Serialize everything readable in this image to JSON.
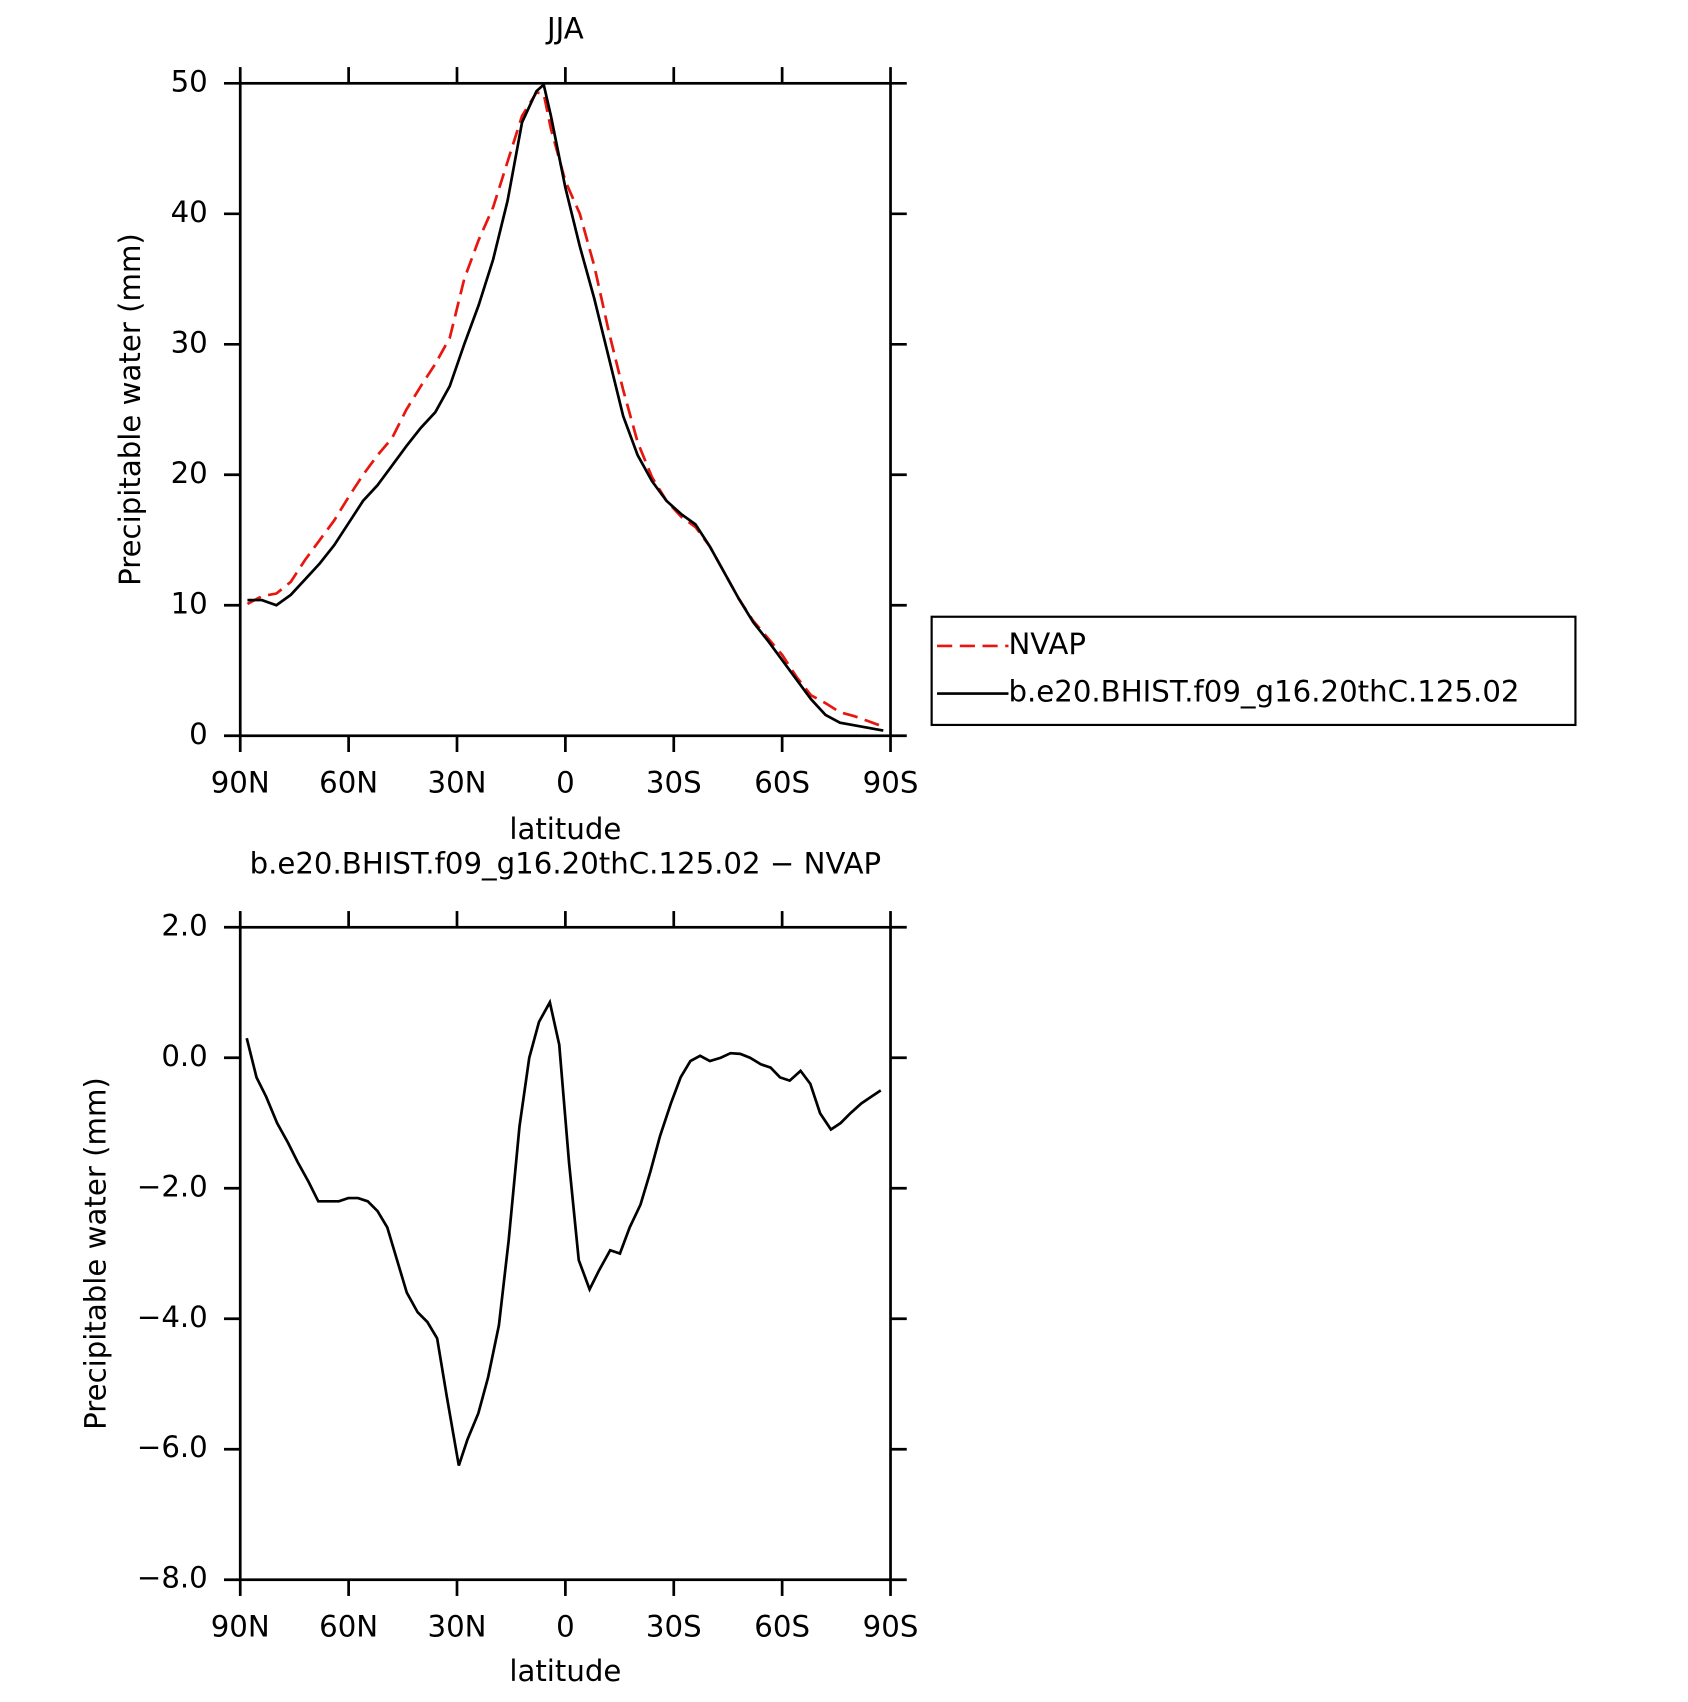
{
  "chart_data": [
    {
      "type": "line",
      "title": "JJA",
      "xlabel": "latitude",
      "ylabel": "Precipitable water (mm)",
      "x": [
        88,
        84,
        80,
        76,
        72,
        68,
        64,
        60,
        56,
        52,
        48,
        44,
        40,
        36,
        32,
        28,
        24,
        20,
        16,
        12,
        8,
        6,
        4,
        0,
        -4,
        -8,
        -12,
        -16,
        -20,
        -24,
        -28,
        -32,
        -36,
        -40,
        -44,
        -48,
        -52,
        -56,
        -60,
        -64,
        -68,
        -72,
        -76,
        -80,
        -84,
        -88
      ],
      "series": [
        {
          "name": "NVAP",
          "color": "#e8160e",
          "line_style": "dashed",
          "values": [
            10.1,
            10.7,
            10.9,
            11.8,
            13.5,
            15.0,
            16.5,
            18.3,
            20.0,
            21.5,
            22.8,
            25.0,
            26.8,
            28.5,
            30.5,
            35.0,
            38.0,
            40.5,
            44.0,
            47.5,
            49.3,
            49.2,
            46.5,
            42.5,
            40.0,
            36.0,
            31.0,
            26.5,
            22.5,
            19.8,
            18.0,
            16.8,
            16.0,
            14.5,
            12.5,
            10.5,
            8.8,
            7.5,
            6.2,
            4.5,
            3.1,
            2.5,
            1.8,
            1.5,
            1.1,
            0.7
          ]
        },
        {
          "name": "b.e20.BHIST.f09_g16.20thC.125.02",
          "color": "#000000",
          "line_style": "solid",
          "values": [
            10.4,
            10.4,
            10.0,
            10.8,
            12.0,
            13.2,
            14.6,
            16.3,
            18.0,
            19.2,
            20.7,
            22.2,
            23.6,
            24.8,
            26.8,
            30.0,
            33.0,
            36.5,
            41.0,
            47.0,
            49.4,
            49.9,
            47.5,
            42.0,
            37.5,
            33.5,
            29.0,
            24.5,
            21.5,
            19.5,
            18.0,
            17.0,
            16.2,
            14.5,
            12.5,
            10.5,
            8.7,
            7.3,
            5.8,
            4.3,
            2.8,
            1.6,
            1.0,
            0.8,
            0.6,
            0.4
          ]
        }
      ],
      "xlim": [
        90,
        -90
      ],
      "xticks": [
        {
          "value": 90,
          "label": "90N"
        },
        {
          "value": 60,
          "label": "60N"
        },
        {
          "value": 30,
          "label": "30N"
        },
        0,
        {
          "value": -30,
          "label": "30S"
        },
        {
          "value": -60,
          "label": "60S"
        },
        {
          "value": -90,
          "label": "90S"
        }
      ],
      "ylim": [
        0,
        50
      ],
      "yticks": [
        0,
        10,
        20,
        30,
        40,
        50
      ],
      "legend": "right"
    },
    {
      "type": "line",
      "title": "b.e20.BHIST.f09_g16.20thC.125.02 − NVAP",
      "xlabel": "latitude",
      "ylabel": "Precipitable water (mm)",
      "x": [
        88.2,
        85.5,
        82.8,
        79.8,
        76.8,
        74.1,
        71.1,
        68.4,
        65.7,
        62.7,
        60.1,
        57.4,
        54.7,
        52.0,
        49.3,
        46.6,
        43.9,
        40.9,
        38.2,
        35.5,
        32.8,
        29.5,
        27.1,
        24.1,
        21.4,
        18.4,
        15.7,
        12.7,
        10.0,
        7.3,
        4.3,
        1.7,
        -1.0,
        -3.7,
        -6.7,
        -9.4,
        -12.4,
        -15.1,
        -17.8,
        -20.8,
        -23.5,
        -26.2,
        -29.2,
        -31.9,
        -34.6,
        -37.3,
        -40.0,
        -43.0,
        -45.7,
        -48.4,
        -51.1,
        -54.1,
        -56.8,
        -59.4,
        -62.1,
        -65.1,
        -67.8,
        -70.5,
        -73.5,
        -76.2,
        -78.9,
        -81.9,
        -84.6,
        -87.3
      ],
      "series": [
        {
          "color": "#000000",
          "line_style": "solid",
          "values": [
            0.3,
            -0.3,
            -0.6,
            -1.0,
            -1.3,
            -1.6,
            -1.9,
            -2.2,
            -2.2,
            -2.2,
            -2.15,
            -2.15,
            -2.2,
            -2.35,
            -2.6,
            -3.1,
            -3.6,
            -3.9,
            -4.05,
            -4.3,
            -5.2,
            -6.25,
            -5.85,
            -5.45,
            -4.9,
            -4.1,
            -2.8,
            -1.05,
            0.0,
            0.55,
            0.85,
            0.2,
            -1.6,
            -3.1,
            -3.55,
            -3.25,
            -2.95,
            -3.0,
            -2.6,
            -2.25,
            -1.75,
            -1.2,
            -0.7,
            -0.3,
            -0.05,
            0.03,
            -0.05,
            0.0,
            0.07,
            0.06,
            0.0,
            -0.1,
            -0.15,
            -0.3,
            -0.35,
            -0.2,
            -0.4,
            -0.85,
            -1.1,
            -1.0,
            -0.85,
            -0.7,
            -0.6,
            -0.5
          ]
        }
      ],
      "xlim": [
        90,
        -90
      ],
      "xticks": [
        {
          "value": 90,
          "label": "90N"
        },
        {
          "value": 60,
          "label": "60N"
        },
        {
          "value": 30,
          "label": "30N"
        },
        0,
        {
          "value": -30,
          "label": "30S"
        },
        {
          "value": -60,
          "label": "60S"
        },
        {
          "value": -90,
          "label": "90S"
        }
      ],
      "ylim": [
        -8,
        2
      ],
      "yticks": [
        {
          "value": -8,
          "label": "−8.0"
        },
        {
          "value": -6,
          "label": "−6.0"
        },
        {
          "value": -4,
          "label": "−4.0"
        },
        {
          "value": -2,
          "label": "−2.0"
        },
        {
          "value": 0,
          "label": "0.0"
        },
        {
          "value": 2,
          "label": "2.0"
        }
      ]
    }
  ]
}
